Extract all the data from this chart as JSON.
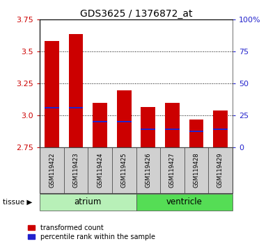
{
  "title": "GDS3625 / 1376872_at",
  "samples": [
    "GSM119422",
    "GSM119423",
    "GSM119424",
    "GSM119425",
    "GSM119426",
    "GSM119427",
    "GSM119428",
    "GSM119429"
  ],
  "red_values": [
    3.585,
    3.635,
    3.1,
    3.2,
    3.065,
    3.1,
    2.97,
    3.04
  ],
  "blue_values": [
    3.06,
    3.06,
    2.955,
    2.955,
    2.895,
    2.895,
    2.875,
    2.895
  ],
  "bar_bottom": 2.75,
  "ymin": 2.75,
  "ymax": 3.75,
  "yticks_left": [
    2.75,
    3.0,
    3.25,
    3.5,
    3.75
  ],
  "yticks_right_labels": [
    "0",
    "25",
    "50",
    "75",
    "100%"
  ],
  "yticks_right_pct": [
    0,
    25,
    50,
    75,
    100
  ],
  "tissues": [
    {
      "label": "atrium",
      "start": 0,
      "end": 3,
      "color": "#b8f0b8"
    },
    {
      "label": "ventricle",
      "start": 4,
      "end": 7,
      "color": "#55dd55"
    }
  ],
  "red_color": "#cc0000",
  "blue_color": "#2222cc",
  "bar_width": 0.6,
  "tissue_label": "tissue",
  "legend_red": "transformed count",
  "legend_blue": "percentile rank within the sample",
  "blue_bar_height": 0.012
}
